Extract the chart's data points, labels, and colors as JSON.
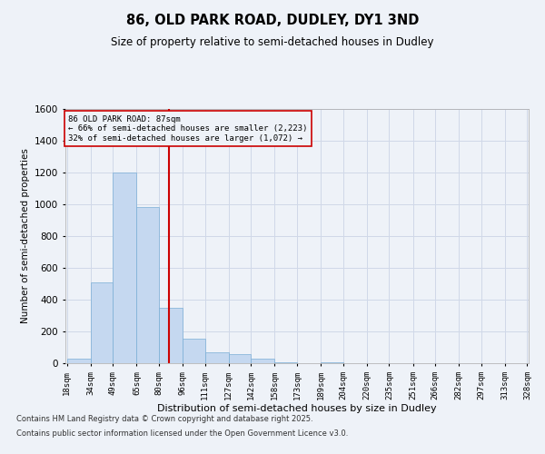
{
  "title": "86, OLD PARK ROAD, DUDLEY, DY1 3ND",
  "subtitle": "Size of property relative to semi-detached houses in Dudley",
  "xlabel": "Distribution of semi-detached houses by size in Dudley",
  "ylabel": "Number of semi-detached properties",
  "footnote1": "Contains HM Land Registry data © Crown copyright and database right 2025.",
  "footnote2": "Contains public sector information licensed under the Open Government Licence v3.0.",
  "annotation_title": "86 OLD PARK ROAD: 87sqm",
  "annotation_line1": "← 66% of semi-detached houses are smaller (2,223)",
  "annotation_line2": "32% of semi-detached houses are larger (1,072) →",
  "property_size": 87,
  "bin_edges": [
    18,
    34,
    49,
    65,
    80,
    96,
    111,
    127,
    142,
    158,
    173,
    189,
    204,
    220,
    235,
    251,
    266,
    282,
    297,
    313,
    328
  ],
  "bar_heights": [
    30,
    510,
    1200,
    980,
    350,
    155,
    70,
    55,
    30,
    5,
    0,
    5,
    0,
    0,
    0,
    0,
    0,
    0,
    0,
    0
  ],
  "bar_color": "#c5d8f0",
  "bar_edge_color": "#7aaed6",
  "vline_color": "#cc0000",
  "annotation_box_color": "#cc0000",
  "grid_color": "#d0d8e8",
  "background_color": "#eef2f8",
  "ylim": [
    0,
    1600
  ],
  "yticks": [
    0,
    200,
    400,
    600,
    800,
    1000,
    1200,
    1400,
    1600
  ]
}
